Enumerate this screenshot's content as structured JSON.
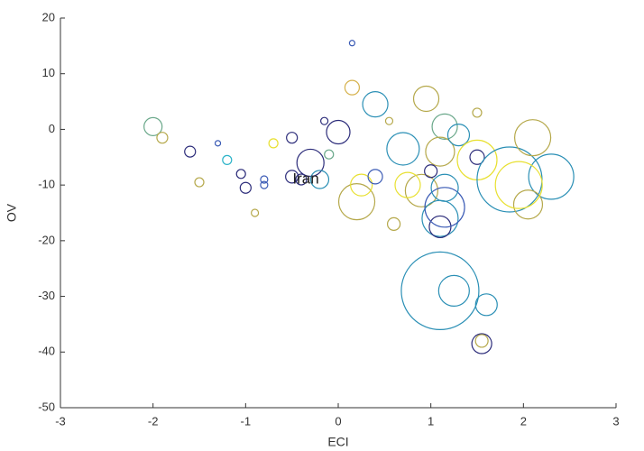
{
  "chart_data": {
    "type": "bubble",
    "x_label": "ECI",
    "y_label": "OV",
    "xlim": [
      -3,
      3
    ],
    "xticks": [
      -3,
      -2,
      -1,
      0,
      1,
      2,
      3
    ],
    "ylim": [
      -50,
      20
    ],
    "yticks": [
      -50,
      -40,
      -30,
      -20,
      -10,
      0,
      10,
      20
    ],
    "annotations": [
      {
        "text": "Iran",
        "x": -0.35,
        "y": -9
      }
    ],
    "x": [
      -2.0,
      -1.9,
      -1.6,
      -1.3,
      -1.05,
      -1.0,
      -0.8,
      -0.5,
      -0.5,
      -0.3,
      -0.2,
      0.0,
      0.15,
      0.15,
      0.4,
      0.2,
      0.25,
      0.4,
      0.7,
      0.9,
      0.75,
      0.95,
      1.15,
      1.1,
      1.3,
      1.5,
      1.5,
      1.85,
      2.3,
      2.1,
      2.05,
      1.95,
      1.1,
      1.1,
      1.15,
      1.15,
      0.6,
      1.1,
      1.25,
      1.6,
      1.55,
      1.55,
      -0.4,
      -0.1,
      -1.2,
      -1.5,
      -0.7,
      -0.15,
      -0.8,
      -0.9,
      0.55,
      1.5,
      1.0
    ],
    "values": [
      0.5,
      -1.5,
      -4,
      -2.5,
      -8,
      -10.5,
      -10,
      -1.5,
      -8.5,
      -6,
      -9,
      -0.5,
      7.5,
      15.5,
      4.5,
      -13,
      -10,
      -8.5,
      -3.5,
      -11,
      -10,
      5.5,
      0.5,
      -4,
      -1,
      -5.5,
      -5,
      -9,
      -8.5,
      -1.5,
      -13.5,
      -10,
      -16,
      -17.5,
      -14,
      -10.5,
      -17,
      -29,
      -29,
      -31.5,
      -38.5,
      -38,
      -9,
      -4.5,
      -5.5,
      -9.5,
      -2.5,
      1.5,
      -9,
      -15,
      1.5,
      3,
      -7.5
    ],
    "sizes": [
      10,
      6,
      6,
      3,
      5,
      6,
      4,
      6,
      7,
      15,
      10,
      13,
      8,
      3,
      14,
      20,
      12,
      8,
      18,
      18,
      14,
      14,
      14,
      16,
      12,
      22,
      8,
      36,
      25,
      20,
      16,
      26,
      20,
      12,
      22,
      15,
      7,
      43,
      17,
      12,
      11,
      7,
      6,
      5,
      5,
      5,
      5,
      4,
      4,
      4,
      4,
      5,
      7
    ],
    "colors": [
      "#6aa88a",
      "#b5a84a",
      "#2c2c7a",
      "#3b5bb5",
      "#2c2c7a",
      "#2c2c7a",
      "#3b5bb5",
      "#2c2c7a",
      "#2c2c7a",
      "#2c2c7a",
      "#2a8fb5",
      "#2c2c7a",
      "#d6b24d",
      "#3b5bb5",
      "#2a8fb5",
      "#b5a84a",
      "#e8e030",
      "#3b5bb5",
      "#2a8fb5",
      "#b5a84a",
      "#e8e030",
      "#b5a84a",
      "#6aa88a",
      "#b5a84a",
      "#2a8fb5",
      "#e8e030",
      "#2c2c7a",
      "#2a8fb5",
      "#2a8fb5",
      "#b5a84a",
      "#b5a84a",
      "#e8e030",
      "#2a8fb5",
      "#2c2c7a",
      "#3b5bb5",
      "#2a8fb5",
      "#b5a84a",
      "#2a8fb5",
      "#2a8fb5",
      "#2a8fb5",
      "#2c2c7a",
      "#b5a84a",
      "#2c2c7a",
      "#6aa88a",
      "#2bb3c8",
      "#b5a84a",
      "#e8e030",
      "#2c2c7a",
      "#3b5bb5",
      "#b5a84a",
      "#b5a84a",
      "#b5a84a",
      "#2c2c7a"
    ]
  }
}
